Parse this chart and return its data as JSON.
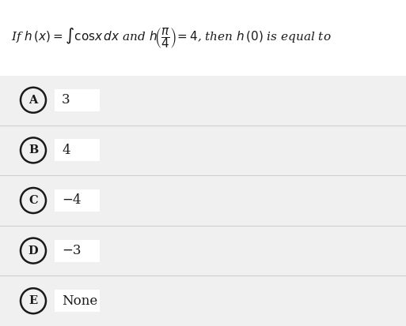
{
  "background_color": "#f5f5f5",
  "question_text": "If $h\\,(x) = \\int \\mathrm{cos}x\\,dx$ and $h\\!\\left(\\dfrac{\\pi}{4}\\right)=4$, then $h\\,(0)$ is equal to",
  "options": [
    {
      "label": "A",
      "text": "3"
    },
    {
      "label": "B",
      "text": "4"
    },
    {
      "label": "C",
      "text": "−4"
    },
    {
      "label": "D",
      "text": "−3"
    },
    {
      "label": "E",
      "text": "None"
    }
  ],
  "option_bg": "#f0f0f0",
  "page_bg": "#ffffff",
  "option_text_color": "#1a1a1a",
  "circle_color": "#1a1a1a",
  "question_color": "#1a1a1a",
  "fig_bg": "#ffffff",
  "sep_color": "#d0d0d0"
}
